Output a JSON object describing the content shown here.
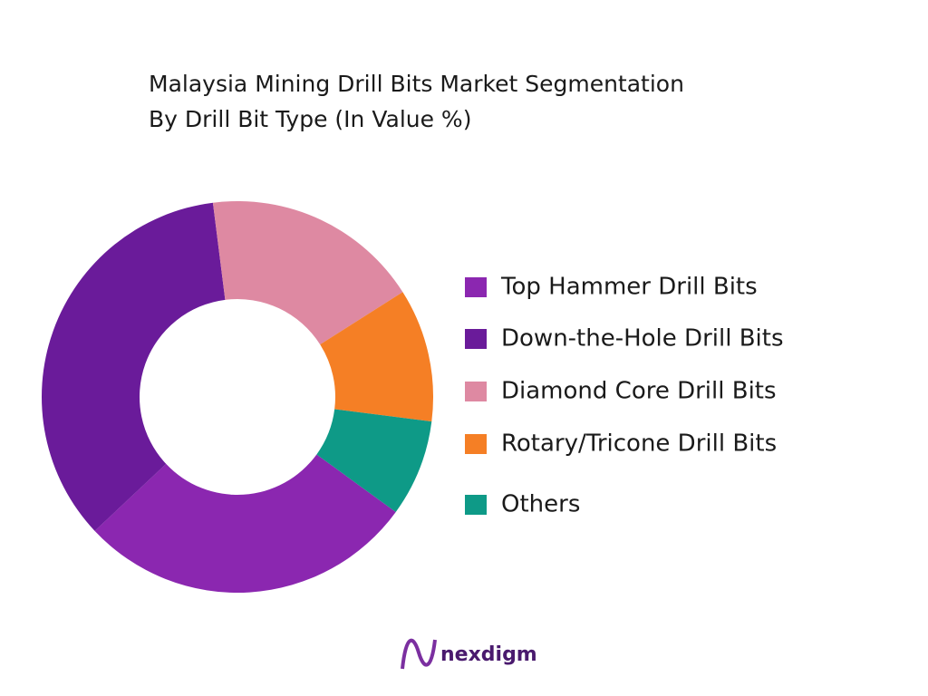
{
  "chart_data": {
    "type": "donut",
    "title": "Malaysia Mining Drill Bits Market Segmentation",
    "subtitle": "By Drill Bit Type (In Value %)",
    "categories": [
      "Top Hammer Drill Bits",
      "Down-the-Hole Drill Bits",
      "Diamond Core Drill Bits",
      "Rotary/Tricone Drill Bits",
      "Others"
    ],
    "values": [
      28,
      35,
      18,
      11,
      8
    ],
    "colors": [
      "#8b27b0",
      "#6a1b9a",
      "#de89a2",
      "#f57f25",
      "#0e9a87"
    ],
    "legend": "right"
  },
  "brand": "nexdigm"
}
